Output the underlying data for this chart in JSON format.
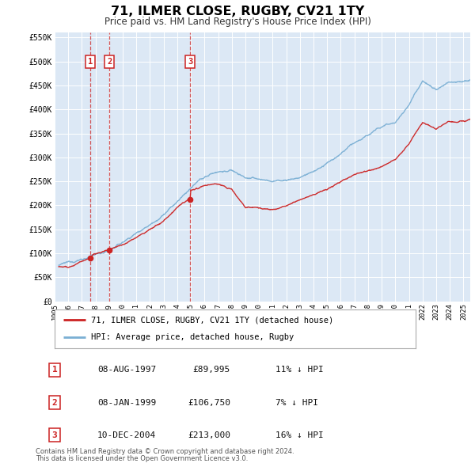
{
  "title": "71, ILMER CLOSE, RUGBY, CV21 1TY",
  "subtitle": "Price paid vs. HM Land Registry's House Price Index (HPI)",
  "background_color": "#ffffff",
  "plot_bg_color": "#dce8f5",
  "ylim": [
    0,
    560000
  ],
  "yticks": [
    0,
    50000,
    100000,
    150000,
    200000,
    250000,
    300000,
    350000,
    400000,
    450000,
    500000,
    550000
  ],
  "ytick_labels": [
    "£0",
    "£50K",
    "£100K",
    "£150K",
    "£200K",
    "£250K",
    "£300K",
    "£350K",
    "£400K",
    "£450K",
    "£500K",
    "£550K"
  ],
  "xlim_start": 1995.3,
  "xlim_end": 2025.5,
  "xticks": [
    1995,
    1996,
    1997,
    1998,
    1999,
    2000,
    2001,
    2002,
    2003,
    2004,
    2005,
    2006,
    2007,
    2008,
    2009,
    2010,
    2011,
    2012,
    2013,
    2014,
    2015,
    2016,
    2017,
    2018,
    2019,
    2020,
    2021,
    2022,
    2023,
    2024,
    2025
  ],
  "hpi_color": "#7aafd4",
  "sale_color": "#cc2222",
  "grid_color": "#ffffff",
  "hpi_key_years": [
    1995.3,
    1996,
    1997,
    1998,
    1999,
    2000,
    2001,
    2002,
    2003,
    2004,
    2005,
    2006,
    2007,
    2008,
    2009,
    2010,
    2011,
    2012,
    2013,
    2014,
    2015,
    2016,
    2017,
    2018,
    2019,
    2020,
    2021,
    2022,
    2023,
    2024,
    2025.5
  ],
  "hpi_key_prices": [
    75000,
    78000,
    88000,
    96000,
    106000,
    121000,
    141000,
    162000,
    186000,
    210000,
    238000,
    257000,
    270000,
    272000,
    257000,
    252000,
    248000,
    250000,
    256000,
    268000,
    282000,
    300000,
    322000,
    338000,
    354000,
    366000,
    400000,
    455000,
    437000,
    448000,
    462000
  ],
  "sale_key_years": [
    1995.3,
    1996,
    1997,
    1997.6,
    1998,
    1999.03,
    2000,
    2001,
    2002,
    2003,
    2004,
    2004.95,
    2005,
    2006,
    2007,
    2008,
    2009,
    2010,
    2011,
    2012,
    2013,
    2014,
    2015,
    2016,
    2017,
    2018,
    2019,
    2020,
    2021,
    2022,
    2023,
    2024,
    2025.5
  ],
  "sale_key_prices": [
    72000,
    74000,
    85000,
    89995,
    96000,
    106750,
    118000,
    133000,
    150000,
    168000,
    196000,
    213000,
    228000,
    238000,
    240000,
    228000,
    192000,
    192000,
    186000,
    195000,
    205000,
    215000,
    226000,
    242000,
    260000,
    270000,
    280000,
    296000,
    328000,
    370000,
    358000,
    374000,
    380000
  ],
  "transactions": [
    {
      "label": "1",
      "date": 1997.6,
      "price": 89995,
      "desc": "08-AUG-1997",
      "price_str": "£89,995",
      "hpi_str": "11% ↓ HPI"
    },
    {
      "label": "2",
      "date": 1999.03,
      "price": 106750,
      "desc": "08-JAN-1999",
      "price_str": "£106,750",
      "hpi_str": "7% ↓ HPI"
    },
    {
      "label": "3",
      "date": 2004.95,
      "price": 213000,
      "desc": "10-DEC-2004",
      "price_str": "£213,000",
      "hpi_str": "16% ↓ HPI"
    }
  ],
  "legend_sale_label": "71, ILMER CLOSE, RUGBY, CV21 1TY (detached house)",
  "legend_hpi_label": "HPI: Average price, detached house, Rugby",
  "footnote1": "Contains HM Land Registry data © Crown copyright and database right 2024.",
  "footnote2": "This data is licensed under the Open Government Licence v3.0."
}
